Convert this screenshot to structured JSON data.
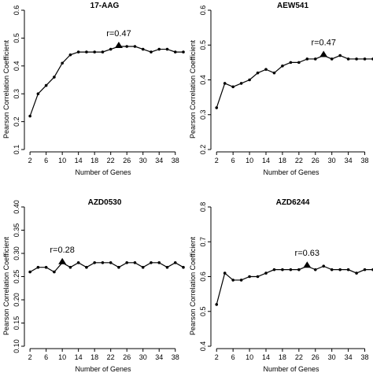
{
  "chart_data": [
    {
      "type": "line",
      "title": "17-AAG",
      "xlabel": "Number of Genes",
      "ylabel": "Pearson Correlation Coefficient",
      "x": [
        2,
        4,
        6,
        8,
        10,
        12,
        14,
        16,
        18,
        20,
        22,
        24,
        26,
        28,
        30,
        32,
        34,
        36,
        38,
        40
      ],
      "values": [
        0.22,
        0.3,
        0.33,
        0.36,
        0.41,
        0.44,
        0.45,
        0.45,
        0.45,
        0.45,
        0.46,
        0.47,
        0.47,
        0.47,
        0.46,
        0.45,
        0.46,
        0.46,
        0.45,
        0.45
      ],
      "highlight_x": 24,
      "annotation": "r=0.47",
      "xticks": [
        2,
        6,
        10,
        14,
        18,
        22,
        26,
        30,
        34,
        38
      ],
      "yticks": [
        0.1,
        0.2,
        0.3,
        0.4,
        0.5,
        0.6
      ],
      "xlim": [
        1,
        40
      ],
      "ylim": [
        0.1,
        0.6
      ]
    },
    {
      "type": "line",
      "title": "AEW541",
      "xlabel": "Number of Genes",
      "ylabel": "Pearson Correlation Coefficient",
      "x": [
        2,
        4,
        6,
        8,
        10,
        12,
        14,
        16,
        18,
        20,
        22,
        24,
        26,
        28,
        30,
        32,
        34,
        36,
        38,
        40
      ],
      "values": [
        0.32,
        0.39,
        0.38,
        0.39,
        0.4,
        0.42,
        0.43,
        0.42,
        0.44,
        0.45,
        0.45,
        0.46,
        0.46,
        0.47,
        0.46,
        0.47,
        0.46,
        0.46,
        0.46,
        0.46
      ],
      "highlight_x": 28,
      "annotation": "r=0.47",
      "xticks": [
        2,
        6,
        10,
        14,
        18,
        22,
        26,
        30,
        34,
        38
      ],
      "yticks": [
        0.2,
        0.3,
        0.4,
        0.5,
        0.6
      ],
      "xlim": [
        1,
        40
      ],
      "ylim": [
        0.2,
        0.6
      ]
    },
    {
      "type": "line",
      "title": "AZD0530",
      "xlabel": "Number of Genes",
      "ylabel": "Pearson Correlation Coefficient",
      "x": [
        2,
        4,
        6,
        8,
        10,
        12,
        14,
        16,
        18,
        20,
        22,
        24,
        26,
        28,
        30,
        32,
        34,
        36,
        38,
        40
      ],
      "values": [
        0.26,
        0.27,
        0.27,
        0.26,
        0.28,
        0.27,
        0.28,
        0.27,
        0.28,
        0.28,
        0.28,
        0.27,
        0.28,
        0.28,
        0.27,
        0.28,
        0.28,
        0.27,
        0.28,
        0.27
      ],
      "highlight_x": 10,
      "annotation": "r=0.28",
      "xticks": [
        2,
        6,
        10,
        14,
        18,
        22,
        26,
        30,
        34,
        38
      ],
      "yticks": [
        0.1,
        0.15,
        0.2,
        0.25,
        0.3,
        0.35,
        0.4
      ],
      "ytick_labels": [
        "0.10",
        "0.15",
        "0.20",
        "0.25",
        "0.30",
        "0.35",
        "0.40"
      ],
      "xlim": [
        1,
        40
      ],
      "ylim": [
        0.1,
        0.4
      ]
    },
    {
      "type": "line",
      "title": "AZD6244",
      "xlabel": "Number of Genes",
      "ylabel": "Pearson Correlation Coefficient",
      "x": [
        2,
        4,
        6,
        8,
        10,
        12,
        14,
        16,
        18,
        20,
        22,
        24,
        26,
        28,
        30,
        32,
        34,
        36,
        38,
        40
      ],
      "values": [
        0.52,
        0.61,
        0.59,
        0.59,
        0.6,
        0.6,
        0.61,
        0.62,
        0.62,
        0.62,
        0.62,
        0.63,
        0.62,
        0.63,
        0.62,
        0.62,
        0.62,
        0.61,
        0.62,
        0.62
      ],
      "highlight_x": 24,
      "annotation": "r=0.63",
      "xticks": [
        2,
        6,
        10,
        14,
        18,
        22,
        26,
        30,
        34,
        38
      ],
      "yticks": [
        0.4,
        0.5,
        0.6,
        0.7,
        0.8
      ],
      "xlim": [
        1,
        40
      ],
      "ylim": [
        0.4,
        0.8
      ]
    }
  ]
}
